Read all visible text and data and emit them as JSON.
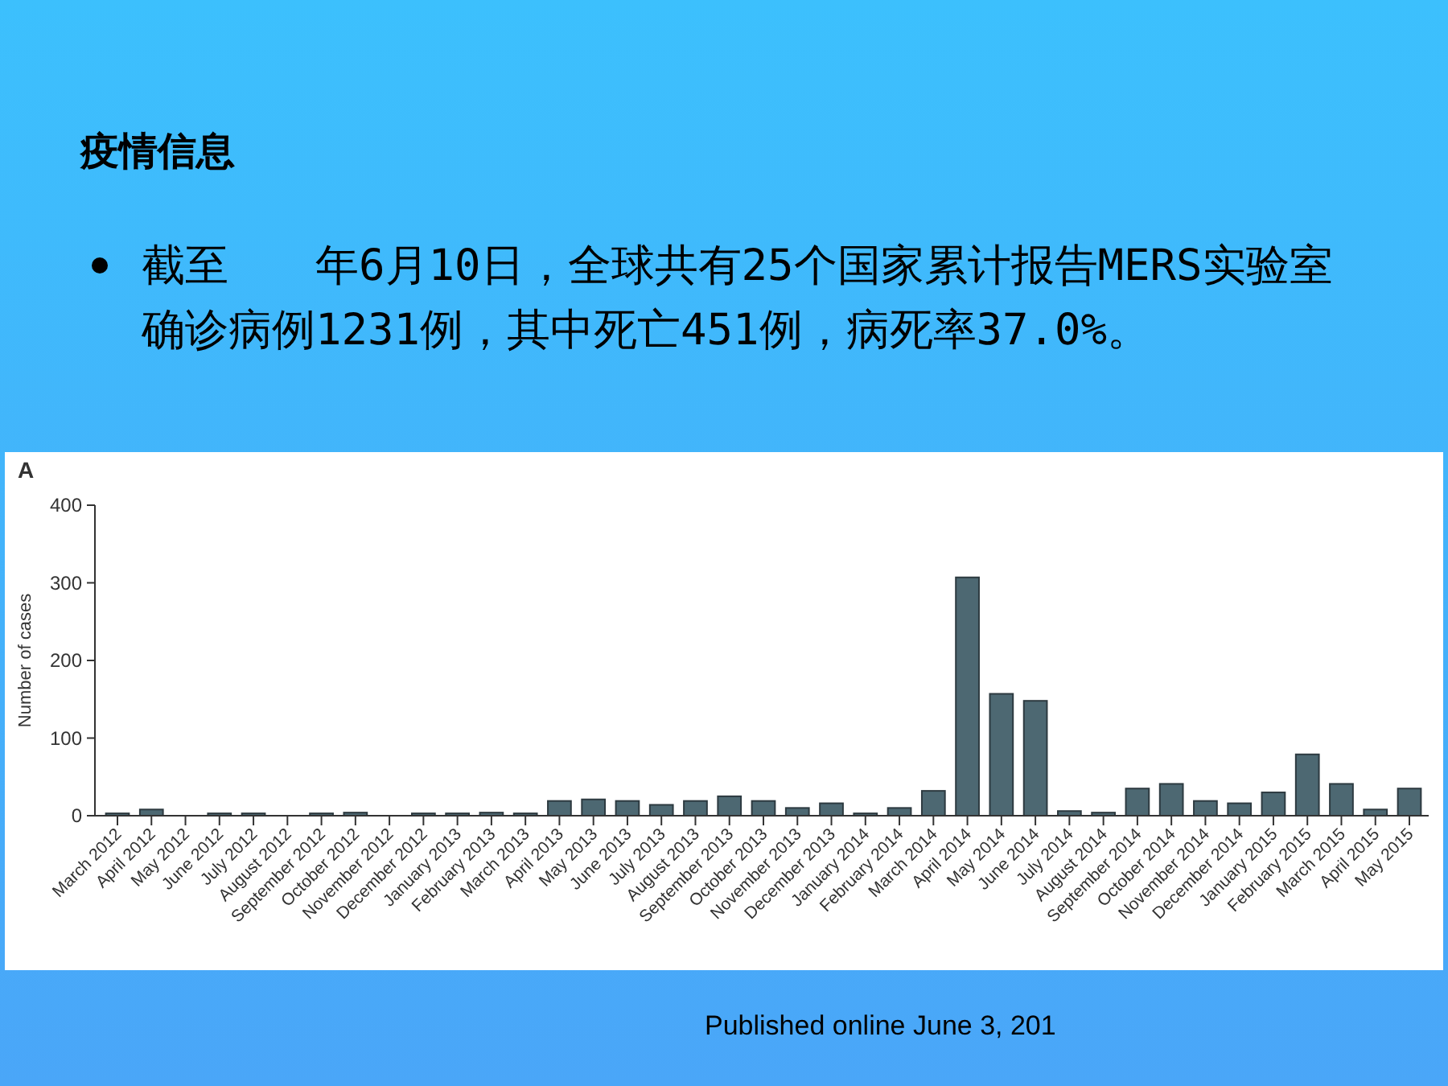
{
  "chart_data": {
    "type": "bar",
    "title": "疫情信息",
    "subtitle": "截至　　年6月10日，全球共有25个国家累计报告MERS实验室确诊病例1231例，其中死亡451例，病死率37.0%。",
    "ylabel": "Number of cases",
    "annotations": [
      "A",
      "Published online June 3, 201"
    ],
    "categories": [
      "March 2012",
      "April 2012",
      "May 2012",
      "June 2012",
      "July 2012",
      "August 2012",
      "September 2012",
      "October 2012",
      "November 2012",
      "December 2012",
      "January 2013",
      "February 2013",
      "March 2013",
      "April 2013",
      "May 2013",
      "June 2013",
      "July 2013",
      "August 2013",
      "September 2013",
      "October 2013",
      "November 2013",
      "December 2013",
      "January 2014",
      "February 2014",
      "March 2014",
      "April 2014",
      "May 2014",
      "June 2014",
      "July 2014",
      "August 2014",
      "September 2014",
      "October 2014",
      "November 2014",
      "December 2014",
      "January 2015",
      "February 2015",
      "March 2015",
      "April 2015",
      "May 2015"
    ],
    "values": [
      3,
      8,
      0,
      3,
      3,
      0,
      3,
      4,
      0,
      3,
      3,
      4,
      3,
      19,
      21,
      19,
      14,
      19,
      25,
      19,
      10,
      16,
      3,
      10,
      32,
      307,
      157,
      148,
      6,
      4,
      35,
      41,
      19,
      16,
      30,
      79,
      41,
      8,
      35
    ],
    "color": "#4d6872",
    "ylim": [
      0,
      400
    ],
    "yticks": [
      0,
      100,
      200,
      300,
      400
    ],
    "grid": false
  }
}
